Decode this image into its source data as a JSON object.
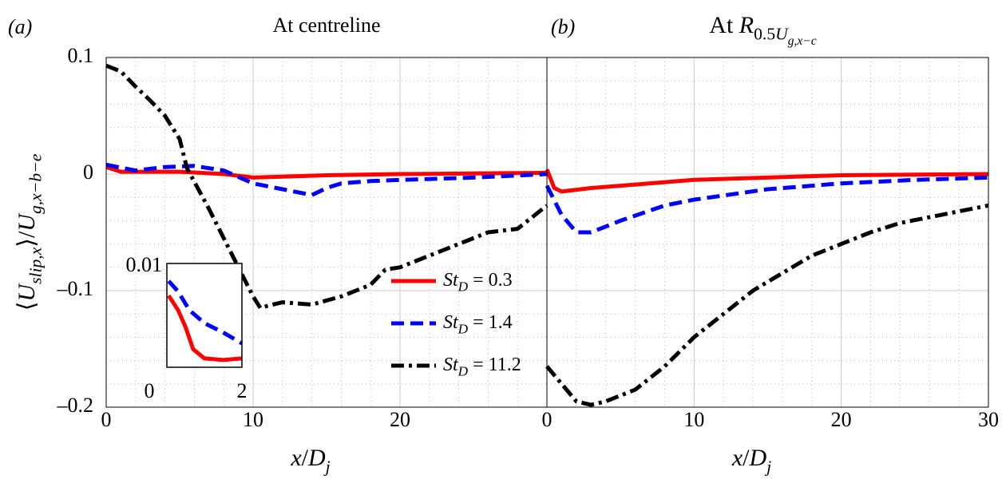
{
  "chart_data": [
    {
      "type": "line",
      "panel": "(a)",
      "title": "At centreline",
      "xlabel": "x/Dj",
      "ylabel": "⟨Uslip,x⟩/Ug,x−b−e",
      "xlim": [
        0,
        30
      ],
      "xticks": [
        0,
        10,
        20
      ],
      "ylim": [
        -0.2,
        0.1
      ],
      "yticks": [
        {
          "value": -0.2,
          "label": "–0.2"
        },
        {
          "value": -0.1,
          "label": "–0.1"
        },
        0,
        0.1
      ],
      "grid": true,
      "minor_grid": true,
      "legend": "lower right",
      "series": [
        {
          "name": "StD = 0.3",
          "color": "#ff0000",
          "linestyle": "solid",
          "x": [
            0,
            1,
            5,
            8,
            10,
            15,
            20,
            30
          ],
          "values": [
            0.006,
            0.002,
            0.002,
            0.0,
            -0.003,
            -0.001,
            0.0,
            0.001
          ]
        },
        {
          "name": "StD = 1.4",
          "color": "#0000ff",
          "linestyle": "dashed",
          "x": [
            0,
            2,
            4,
            6,
            8,
            10,
            12,
            14,
            15,
            16,
            18,
            20,
            25,
            30
          ],
          "values": [
            0.008,
            0.003,
            0.006,
            0.007,
            0.003,
            -0.008,
            -0.013,
            -0.018,
            -0.012,
            -0.008,
            -0.006,
            -0.005,
            -0.003,
            0.0
          ]
        },
        {
          "name": "StD = 11.2",
          "color": "#000000",
          "linestyle": "dashdot",
          "x": [
            0,
            1,
            2,
            3,
            4,
            5,
            5.5,
            7,
            8,
            9,
            10,
            10.5,
            11,
            12,
            14,
            16,
            18,
            19,
            20,
            22,
            24,
            26,
            28,
            30
          ],
          "values": [
            0.093,
            0.088,
            0.075,
            0.063,
            0.05,
            0.03,
            0.005,
            -0.03,
            -0.055,
            -0.08,
            -0.105,
            -0.115,
            -0.113,
            -0.11,
            -0.112,
            -0.105,
            -0.095,
            -0.082,
            -0.08,
            -0.07,
            -0.06,
            -0.05,
            -0.047,
            -0.027
          ]
        }
      ]
    },
    {
      "type": "line",
      "panel": "(b)",
      "title": "At R0.5Ug,x−c",
      "xlabel": "x/Dj",
      "xlim": [
        0,
        30
      ],
      "xticks": [
        0,
        10,
        20,
        30
      ],
      "ylim": [
        -0.2,
        0.1
      ],
      "yticks": [
        -0.2,
        -0.1,
        0,
        0.1
      ],
      "grid": true,
      "minor_grid": true,
      "series": [
        {
          "color": "#ff0000",
          "linestyle": "solid",
          "x": [
            0,
            0.5,
            1,
            3,
            5,
            10,
            15,
            20,
            30
          ],
          "values": [
            0.004,
            -0.012,
            -0.015,
            -0.012,
            -0.01,
            -0.005,
            -0.003,
            -0.001,
            0.0
          ]
        },
        {
          "color": "#0000ff",
          "linestyle": "dashed",
          "x": [
            0,
            1,
            2,
            3,
            5,
            8,
            10,
            15,
            20,
            25,
            30
          ],
          "values": [
            -0.01,
            -0.035,
            -0.05,
            -0.05,
            -0.04,
            -0.027,
            -0.022,
            -0.013,
            -0.008,
            -0.005,
            -0.003
          ]
        },
        {
          "color": "#000000",
          "linestyle": "dashdot",
          "x": [
            0,
            1,
            2,
            3,
            4,
            6,
            8,
            10,
            12,
            14,
            16,
            18,
            20,
            22,
            24,
            26,
            28,
            30
          ],
          "values": [
            -0.165,
            -0.18,
            -0.195,
            -0.198,
            -0.195,
            -0.185,
            -0.165,
            -0.14,
            -0.12,
            -0.1,
            -0.085,
            -0.07,
            -0.06,
            -0.05,
            -0.042,
            -0.037,
            -0.032,
            -0.027
          ]
        }
      ]
    },
    {
      "type": "line",
      "inset": true,
      "xlim": [
        0,
        2
      ],
      "xticks": [
        0,
        2
      ],
      "ylim": [
        -0.01,
        0.01
      ],
      "yticks": [
        0.01
      ],
      "series": [
        {
          "color": "#ff0000",
          "linestyle": "solid",
          "x": [
            0.05,
            0.3,
            0.5,
            0.7,
            1.0,
            1.5,
            2.0
          ],
          "values": [
            0.0038,
            0.001,
            -0.0023,
            -0.0065,
            -0.0083,
            -0.0086,
            -0.0083
          ]
        },
        {
          "color": "#0000ff",
          "linestyle": "dashed",
          "x": [
            0.05,
            0.3,
            0.6,
            1.0,
            1.5,
            2.0
          ],
          "values": [
            0.0066,
            0.0046,
            0.001,
            -0.0015,
            -0.0033,
            -0.0054
          ]
        }
      ]
    }
  ]
}
